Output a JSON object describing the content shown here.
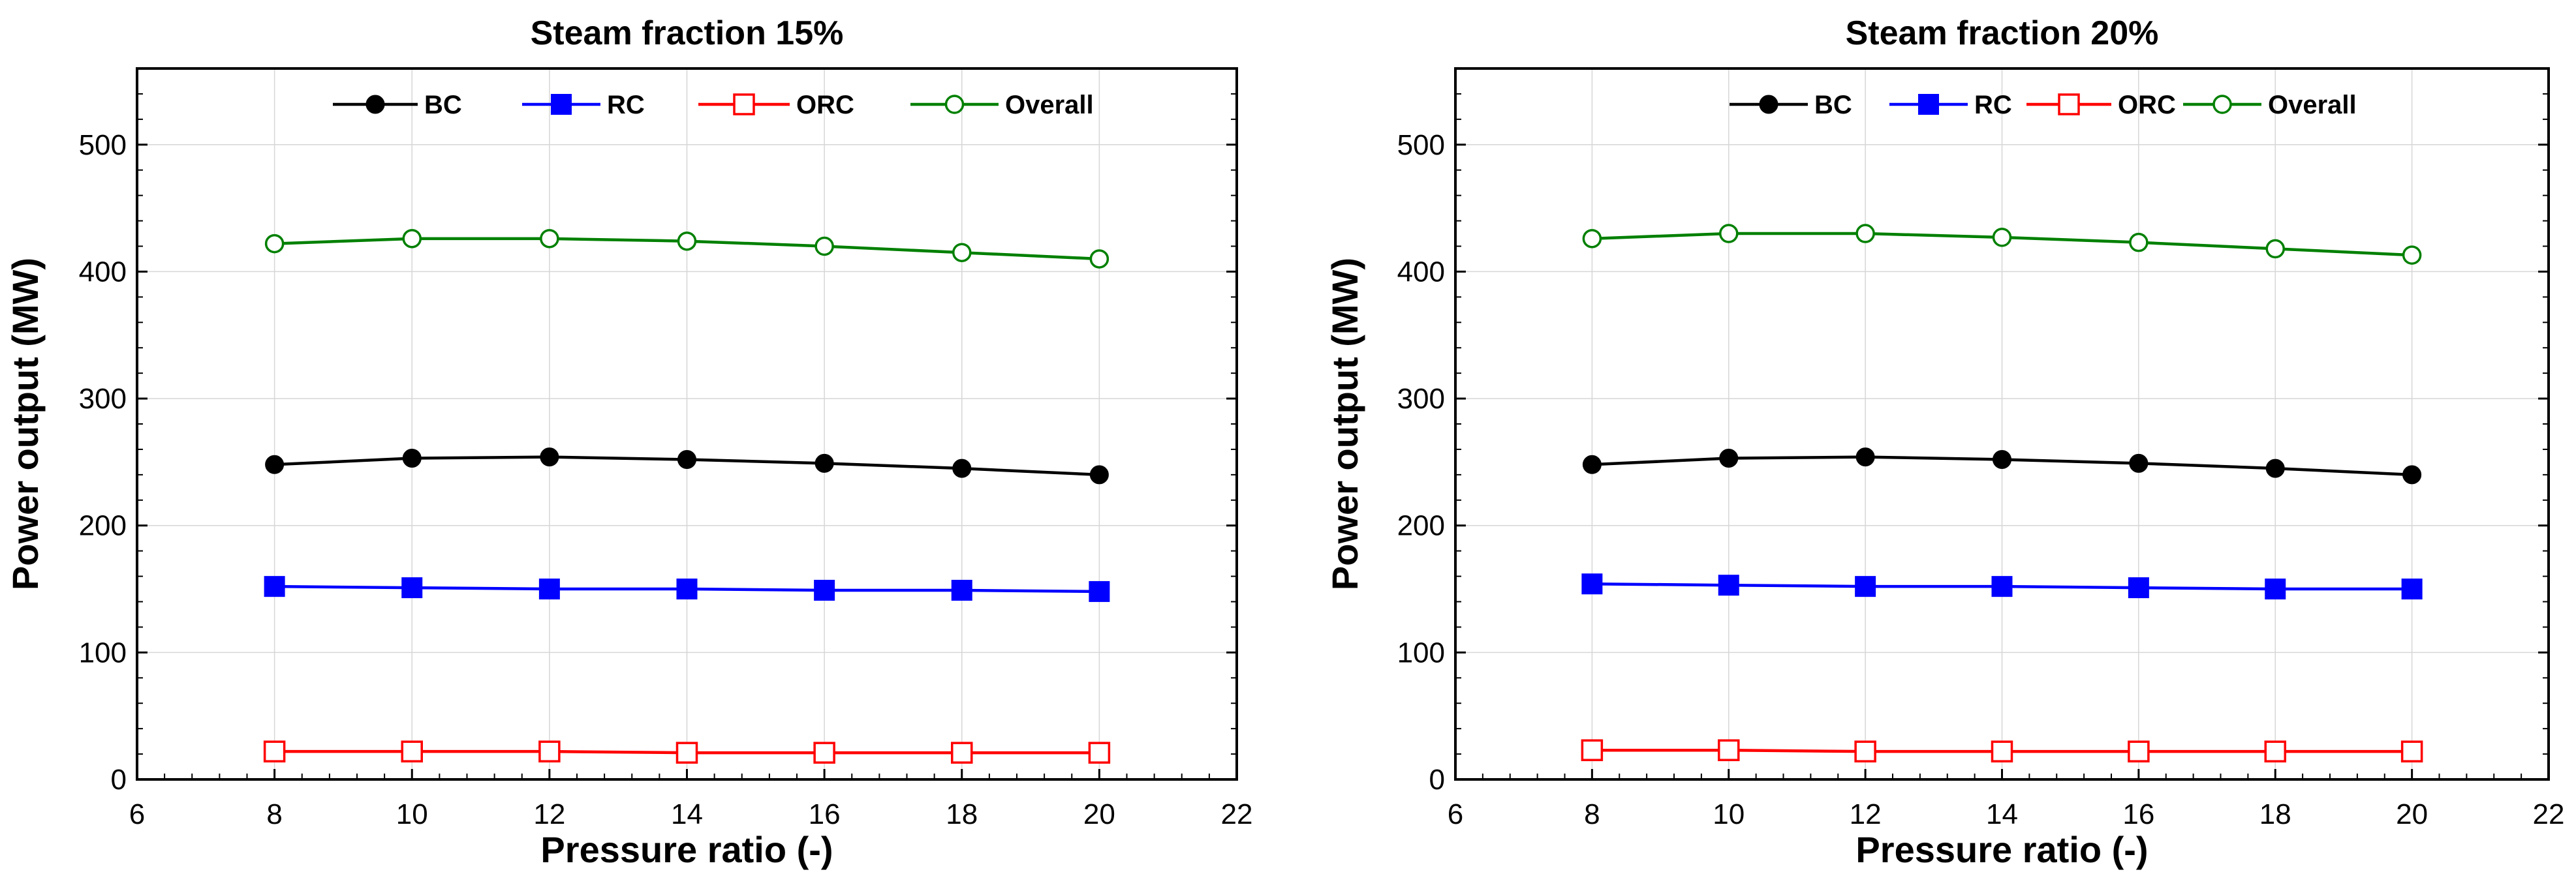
{
  "chart_data": [
    {
      "type": "line",
      "title": "Steam fraction 15%",
      "xlabel": "Pressure ratio (-)",
      "ylabel": "Power output (MW)",
      "xlim": [
        6,
        22
      ],
      "ylim": [
        0,
        560
      ],
      "xticks": [
        6,
        8,
        10,
        12,
        14,
        16,
        18,
        20,
        22
      ],
      "yticks": [
        0,
        100,
        200,
        300,
        400,
        500
      ],
      "grid": true,
      "legend_position": "top",
      "x": [
        8,
        10,
        12,
        14,
        16,
        18,
        20
      ],
      "series": [
        {
          "name": "BC",
          "color": "#000000",
          "marker": "filled-circle",
          "values": [
            248,
            253,
            254,
            252,
            249,
            245,
            240
          ]
        },
        {
          "name": "RC",
          "color": "#0000ff",
          "marker": "filled-square",
          "values": [
            152,
            151,
            150,
            150,
            149,
            149,
            148
          ]
        },
        {
          "name": "ORC",
          "color": "#ff0000",
          "marker": "open-square",
          "values": [
            22,
            22,
            22,
            21,
            21,
            21,
            21
          ]
        },
        {
          "name": "Overall",
          "color": "#008000",
          "marker": "open-circle",
          "values": [
            422,
            426,
            426,
            424,
            420,
            415,
            410
          ]
        }
      ]
    },
    {
      "type": "line",
      "title": "Steam fraction 20%",
      "xlabel": "Pressure ratio (-)",
      "ylabel": "Power output (MW)",
      "xlim": [
        6,
        22
      ],
      "ylim": [
        0,
        560
      ],
      "xticks": [
        6,
        8,
        10,
        12,
        14,
        16,
        18,
        20,
        22
      ],
      "yticks": [
        0,
        100,
        200,
        300,
        400,
        500
      ],
      "grid": true,
      "legend_position": "top",
      "x": [
        8,
        10,
        12,
        14,
        16,
        18,
        20
      ],
      "series": [
        {
          "name": "BC",
          "color": "#000000",
          "marker": "filled-circle",
          "values": [
            248,
            253,
            254,
            252,
            249,
            245,
            240
          ]
        },
        {
          "name": "RC",
          "color": "#0000ff",
          "marker": "filled-square",
          "values": [
            154,
            153,
            152,
            152,
            151,
            150,
            150
          ]
        },
        {
          "name": "ORC",
          "color": "#ff0000",
          "marker": "open-square",
          "values": [
            23,
            23,
            22,
            22,
            22,
            22,
            22
          ]
        },
        {
          "name": "Overall",
          "color": "#008000",
          "marker": "open-circle",
          "values": [
            426,
            430,
            430,
            427,
            423,
            418,
            413
          ]
        }
      ]
    }
  ]
}
